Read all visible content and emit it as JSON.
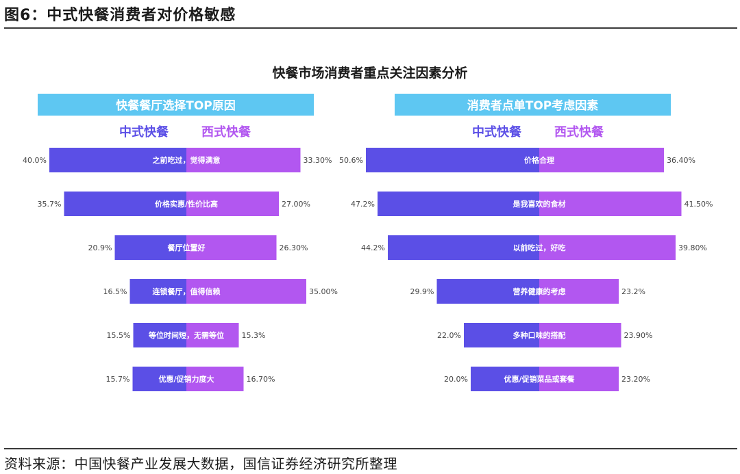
{
  "figure_title": "图6：中式快餐消费者对价格敏感",
  "source": "资料来源：中国快餐产业发展大数据，国信证券经济研究所整理",
  "colors": {
    "chinese": "#5b4fe6",
    "western": "#b257f0",
    "header": "#5ec7f2"
  },
  "chart_data": {
    "type": "bar",
    "title": "快餐市场消费者重点关注因素分析",
    "legend": [
      "中式快餐",
      "西式快餐"
    ],
    "panels": [
      {
        "header": "快餐餐厅选择TOP原因",
        "categories": [
          "之前吃过，觉得满意",
          "价格实惠/性价比高",
          "餐厅位置好",
          "连锁餐厅，值得信赖",
          "等位时间短，无需等位",
          "优惠/促销力度大"
        ],
        "series": [
          {
            "name": "中式快餐",
            "values": [
              40.0,
              35.7,
              20.9,
              16.5,
              15.5,
              15.7
            ],
            "labels": [
              "40.0%",
              "35.7%",
              "20.9%",
              "16.5%",
              "15.5%",
              "15.7%"
            ]
          },
          {
            "name": "西式快餐",
            "values": [
              33.3,
              27.0,
              26.3,
              35.0,
              15.3,
              16.7
            ],
            "labels": [
              "33.30%",
              "27.00%",
              "26.30%",
              "35.00%",
              "15.3%",
              "16.70%"
            ]
          }
        ]
      },
      {
        "header": "消费者点单TOP考虑因素",
        "categories": [
          "价格合理",
          "是我喜欢的食材",
          "以前吃过，好吃",
          "营养健康的考虑",
          "多种口味的搭配",
          "优惠/促销菜品或套餐"
        ],
        "series": [
          {
            "name": "中式快餐",
            "values": [
              50.6,
              47.2,
              44.2,
              29.9,
              22.0,
              20.0
            ],
            "labels": [
              "50.6%",
              "47.2%",
              "44.2%",
              "29.9%",
              "22.0%",
              "20.0%"
            ]
          },
          {
            "name": "西式快餐",
            "values": [
              36.4,
              41.5,
              39.8,
              23.2,
              23.9,
              23.2
            ],
            "labels": [
              "36.40%",
              "41.50%",
              "39.80%",
              "23.2%",
              "23.90%",
              "23.20%"
            ]
          }
        ]
      }
    ]
  }
}
